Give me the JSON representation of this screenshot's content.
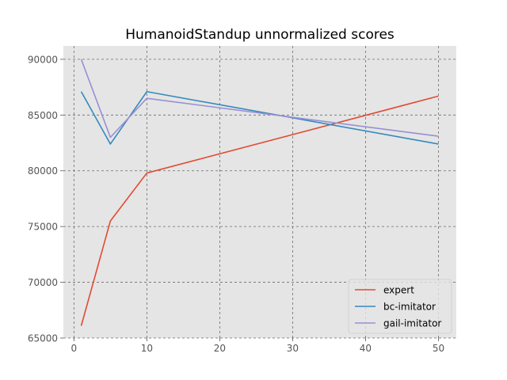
{
  "chart_data": {
    "type": "line",
    "title": "HumanoidStandup unnormalized scores",
    "xlabel": "",
    "ylabel": "",
    "x": [
      1,
      5,
      10,
      50
    ],
    "series": [
      {
        "name": "expert",
        "color": "#E24A33",
        "values": [
          66100,
          75500,
          79800,
          86700
        ]
      },
      {
        "name": "bc-imitator",
        "color": "#348ABD",
        "values": [
          87100,
          82400,
          87100,
          82400
        ]
      },
      {
        "name": "gail-imitator",
        "color": "#988ED5",
        "values": [
          90000,
          83000,
          86500,
          83100
        ]
      }
    ],
    "xlim": [
      -1.45,
      52.45
    ],
    "ylim": [
      65000,
      91200
    ],
    "xticks": [
      0,
      10,
      20,
      30,
      40,
      50
    ],
    "yticks": [
      65000,
      70000,
      75000,
      80000,
      85000,
      90000
    ],
    "xtick_labels": [
      "0",
      "10",
      "20",
      "30",
      "40",
      "50"
    ],
    "ytick_labels": [
      "65000",
      "70000",
      "75000",
      "80000",
      "85000",
      "90000"
    ],
    "grid": true,
    "legend_position": "lower-right",
    "background_color": "#E5E5E5"
  }
}
